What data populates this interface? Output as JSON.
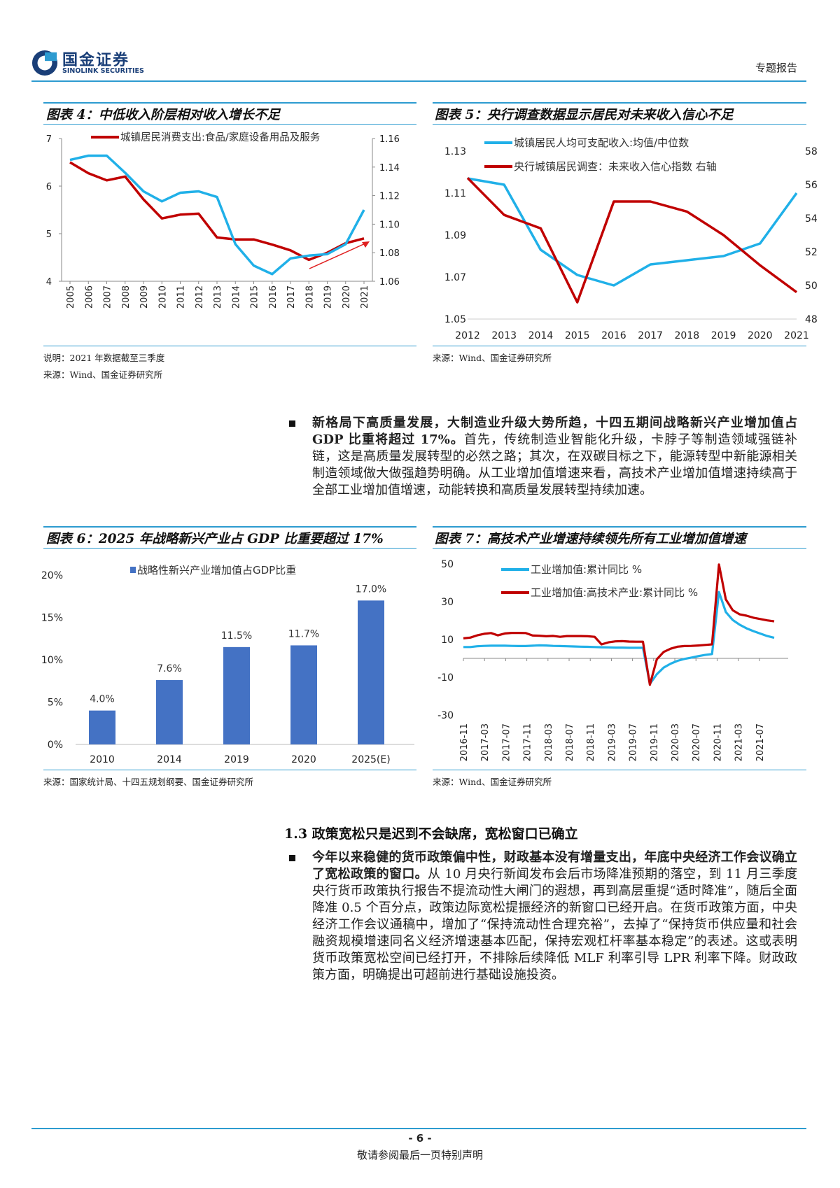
{
  "header": {
    "company_cn": "国金证券",
    "company_en": "SINOLINK SECURITIES",
    "report_type": "专题报告"
  },
  "fig4": {
    "title": "图表 4：中低收入阶层相对收入增长不足",
    "note": "说明：2021 年数据截至三季度",
    "source": "来源：Wind、国金证券研究所"
  },
  "fig5": {
    "title": "图表 5：央行调查数据显示居民对未来收入信心不足",
    "source": "来源：Wind、国金证券研究所"
  },
  "fig6": {
    "title": "图表 6：2025 年战略新兴产业占 GDP 比重要超过 17%",
    "source": "来源：国家统计局、十四五规划纲要、国金证券研究所"
  },
  "fig7": {
    "title": "图表 7：高技术产业增速持续领先所有工业增加值增速",
    "source": "来源：Wind、国金证券研究所"
  },
  "para1": {
    "bold": "新格局下高质量发展，大制造业升级大势所趋，十四五期间战略新兴产业增加值占 GDP 比重将超过 17%。",
    "rest": "首先，传统制造业智能化升级，卡脖子等制造领域强链补链，这是高质量发展转型的必然之路；其次，在双碳目标之下，能源转型中新能源相关制造领域做大做强趋势明确。从工业增加值增速来看，高技术产业增加值增速持续高于全部工业增加值增速，动能转换和高质量发展转型持续加速。"
  },
  "section": {
    "heading": "1.3 政策宽松只是迟到不会缺席，宽松窗口已确立"
  },
  "para2": {
    "bold": "今年以来稳健的货币政策偏中性，财政基本没有增量支出，年底中央经济工作会议确立了宽松政策的窗口。",
    "rest": "从 10 月央行新闻发布会后市场降准预期的落空，到 11 月三季度央行货币政策执行报告不提流动性大闸门的遐想，再到高层重提“适时降准”，随后全面降准 0.5 个百分点，政策边际宽松提振经济的新窗口已经开启。在货币政策方面，中央经济工作会议通稿中，增加了“保持流动性合理充裕”，去掉了“保持货币供应量和社会融资规模增速同名义经济增速基本匹配，保持宏观杠杆率基本稳定”的表述。这或表明货币政策宽松空间已经打开，不排除后续降低 MLF 利率引导 LPR 利率下降。财政政策方面，明确提出可超前进行基础设施投资。"
  },
  "footer": {
    "page": "- 6 -",
    "note": "敬请参阅最后一页特别声明"
  },
  "colors": {
    "accent": "#2d9bd0",
    "red": "#c00000",
    "cyan": "#20b0e8",
    "bar": "#4472c4"
  },
  "chart_data": [
    {
      "id": "fig4",
      "type": "line",
      "x": [
        "2005",
        "2006",
        "2007",
        "2008",
        "2009",
        "2010",
        "2011",
        "2012",
        "2013",
        "2014",
        "2015",
        "2016",
        "2017",
        "2018",
        "2019",
        "2020",
        "2021"
      ],
      "series": [
        {
          "name": "城镇居民消费支出:食品/家庭设备用品及服务",
          "axis": "left",
          "color": "#c00000",
          "values": [
            6.5,
            6.27,
            6.12,
            6.2,
            5.72,
            5.32,
            5.4,
            5.42,
            4.92,
            4.88,
            4.88,
            4.77,
            4.65,
            4.45,
            4.6,
            4.8,
            4.9
          ]
        },
        {
          "axis": "right",
          "color": "#20b0e8",
          "values": [
            1.145,
            1.148,
            1.148,
            1.136,
            1.123,
            1.116,
            1.122,
            1.123,
            1.119,
            1.086,
            1.071,
            1.065,
            1.076,
            1.078,
            1.079,
            1.086,
            1.11
          ]
        }
      ],
      "ylim_left": [
        4,
        7
      ],
      "yticks_left": [
        "7",
        "6",
        "5",
        "4"
      ],
      "ylim_right": [
        1.06,
        1.16
      ],
      "yticks_right": [
        "1.16",
        "1.14",
        "1.12",
        "1.10",
        "1.08",
        "1.06"
      ],
      "grid": false,
      "legend": "top"
    },
    {
      "id": "fig5",
      "type": "line",
      "x": [
        "2012",
        "2013",
        "2014",
        "2015",
        "2016",
        "2017",
        "2018",
        "2019",
        "2020",
        "2021"
      ],
      "series": [
        {
          "name": "城镇居民人均可支配收入:均值/中位数",
          "axis": "left",
          "color": "#20b0e8",
          "values": [
            1.117,
            1.114,
            1.083,
            1.071,
            1.066,
            1.076,
            1.078,
            1.08,
            1.086,
            1.11
          ]
        },
        {
          "name": "央行城镇居民调查：未来收入信心指数 右轴",
          "axis": "right",
          "color": "#c00000",
          "values": [
            56.4,
            54.2,
            53.4,
            49.0,
            55.0,
            55.0,
            54.4,
            53.0,
            51.2,
            49.6
          ]
        }
      ],
      "ylim_left": [
        1.05,
        1.13
      ],
      "yticks_left": [
        "1.13",
        "1.11",
        "1.09",
        "1.07",
        "1.05"
      ],
      "ylim_right": [
        48,
        58
      ],
      "yticks_right": [
        "58",
        "56",
        "54",
        "52",
        "50",
        "48"
      ],
      "grid": false,
      "legend": "top"
    },
    {
      "id": "fig6",
      "type": "bar",
      "legend_label": "战略性新兴产业增加值占GDP比重",
      "categories": [
        "2010",
        "2014",
        "2019",
        "2020",
        "2025(E)"
      ],
      "values": [
        4.0,
        7.6,
        11.5,
        11.7,
        17.0
      ],
      "labels": [
        "4.0%",
        "7.6%",
        "11.5%",
        "11.7%",
        "17.0%"
      ],
      "ylim": [
        0,
        20
      ],
      "yticks": [
        "20%",
        "15%",
        "10%",
        "5%",
        "0%"
      ],
      "grid": false,
      "legend": "top"
    },
    {
      "id": "fig7",
      "type": "line",
      "x_ticks": [
        "2016-11",
        "2017-03",
        "2017-07",
        "2017-11",
        "2018-03",
        "2018-07",
        "2018-11",
        "2019-03",
        "2019-07",
        "2019-11",
        "2020-03",
        "2020-07",
        "2020-11",
        "2021-03",
        "2021-07"
      ],
      "series": [
        {
          "name": "工业增加值:累计同比 %",
          "color": "#20b0e8",
          "values": [
            6.0,
            6.0,
            6.4,
            6.6,
            6.7,
            6.7,
            6.7,
            6.6,
            6.5,
            6.5,
            6.7,
            6.9,
            6.8,
            6.6,
            6.5,
            6.4,
            6.3,
            6.2,
            6.1,
            6.0,
            5.9,
            5.8,
            5.7,
            5.7,
            5.6,
            5.6,
            5.6,
            -13.5,
            -8.4,
            -4.9,
            -2.8,
            -1.3,
            -0.3,
            0.4,
            1.2,
            1.8,
            2.3,
            35.1,
            24.5,
            20.3,
            17.8,
            15.9,
            14.4,
            13.1,
            11.8,
            10.9
          ]
        },
        {
          "name": "工业增加值:高技术产业:累计同比 %",
          "color": "#c00000",
          "values": [
            10.6,
            11.0,
            12.2,
            13.0,
            13.4,
            12.2,
            13.2,
            13.5,
            13.5,
            13.4,
            12.1,
            12.0,
            11.7,
            11.9,
            11.4,
            11.8,
            11.8,
            11.8,
            11.7,
            11.4,
            7.4,
            8.5,
            9.0,
            9.1,
            8.9,
            8.8,
            8.8,
            -14.0,
            -0.5,
            3.4,
            5.1,
            6.2,
            6.5,
            6.6,
            6.8,
            7.1,
            7.4,
            49.7,
            31.2,
            25.5,
            23.3,
            22.6,
            21.5,
            20.8,
            20.1,
            19.6
          ]
        }
      ],
      "ylim": [
        -30,
        50
      ],
      "yticks": [
        "50",
        "30",
        "10",
        "-10",
        "-30"
      ],
      "grid": false,
      "legend": "top"
    }
  ]
}
